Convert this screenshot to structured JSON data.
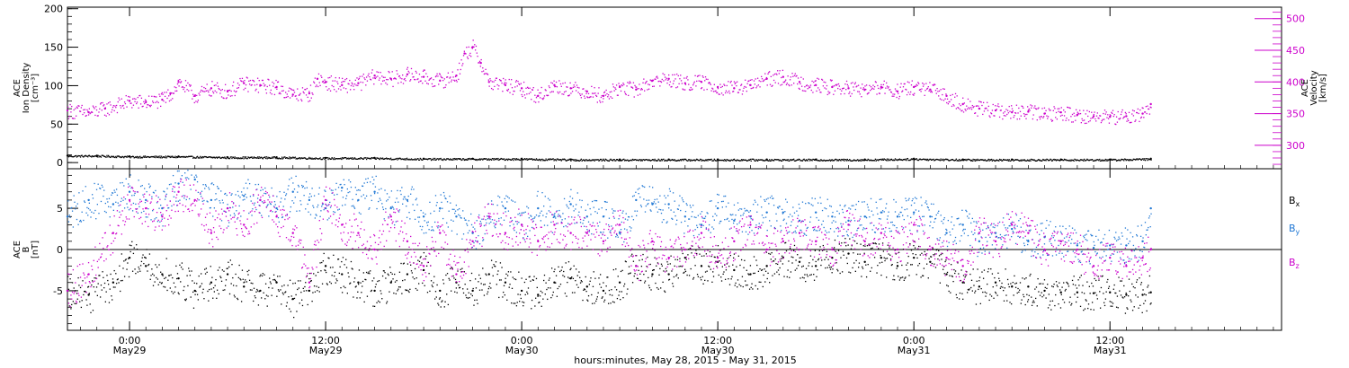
{
  "colors": {
    "black": "#000000",
    "magenta": "#cc00cc",
    "blue": "#1f77d4"
  },
  "x_axis": {
    "label": "hours:minutes, May 28, 2015 - May 31, 2015",
    "ticks": [
      {
        "t": 0,
        "time": "0:00",
        "date": "May29"
      },
      {
        "t": 12,
        "time": "12:00",
        "date": "May29"
      },
      {
        "t": 24,
        "time": "0:00",
        "date": "May30"
      },
      {
        "t": 36,
        "time": "12:00",
        "date": "May30"
      },
      {
        "t": 48,
        "time": "0:00",
        "date": "May31"
      },
      {
        "t": 60,
        "time": "12:00",
        "date": "May31"
      }
    ]
  },
  "chart_data": [
    {
      "type": "scatter",
      "panel": "top",
      "x_units": "hours since May 29 00:00",
      "xlim": [
        -3.8,
        70.5
      ],
      "left_axis": {
        "label_lines": [
          "ACE",
          "Ion Density",
          "[cm⁻³]"
        ],
        "ylim": [
          -8,
          202
        ],
        "ticks": [
          0,
          50,
          100,
          150,
          200
        ]
      },
      "right_axis": {
        "label_lines": [
          "ACE",
          "Velocity",
          "[km/s]"
        ],
        "ylim": [
          263,
          518
        ],
        "ticks": [
          300,
          350,
          400,
          450,
          500
        ]
      },
      "series": [
        {
          "name": "Ion Density",
          "axis": "left",
          "color": "#000000",
          "x": [
            -3.8,
            -2,
            0,
            3,
            6,
            9,
            12,
            15,
            18,
            21,
            24,
            27,
            30,
            33,
            36,
            39,
            42,
            45,
            48,
            51,
            54,
            57,
            60,
            62.5
          ],
          "y": [
            9,
            9,
            8,
            8,
            7,
            7,
            6,
            6,
            5,
            5,
            5,
            4,
            4,
            4,
            4,
            4,
            4,
            4,
            5,
            4,
            4,
            4,
            4,
            5
          ]
        },
        {
          "name": "Velocity",
          "axis": "right",
          "color": "#cc00cc",
          "x": [
            -3.8,
            -2.5,
            -1.5,
            0,
            1,
            2,
            2.5,
            3,
            4,
            5,
            6,
            7,
            8,
            9,
            10,
            11,
            11.5,
            12,
            13,
            14,
            15,
            16,
            17,
            18,
            19,
            20,
            20.5,
            21,
            21.5,
            22,
            23,
            24,
            25,
            26,
            27,
            28,
            29,
            30,
            31,
            32,
            33,
            34,
            35,
            36,
            37,
            38,
            39,
            40,
            41,
            42,
            43,
            44,
            45,
            46,
            47,
            48,
            49,
            50,
            51,
            52,
            53,
            54,
            55,
            56,
            57,
            58,
            59,
            60,
            61,
            62,
            62.5
          ],
          "y": [
            355,
            352,
            358,
            370,
            368,
            372,
            382,
            400,
            378,
            390,
            385,
            398,
            395,
            392,
            380,
            382,
            405,
            400,
            395,
            398,
            410,
            405,
            412,
            408,
            402,
            410,
            445,
            455,
            430,
            400,
            395,
            390,
            378,
            395,
            390,
            385,
            378,
            392,
            388,
            402,
            405,
            398,
            400,
            392,
            390,
            395,
            405,
            408,
            400,
            395,
            392,
            390,
            388,
            392,
            385,
            392,
            388,
            378,
            365,
            358,
            355,
            352,
            353,
            350,
            352,
            348,
            346,
            345,
            346,
            350,
            365
          ]
        }
      ]
    },
    {
      "type": "scatter",
      "panel": "bottom",
      "x_units": "hours since May 29 00:00",
      "xlim": [
        -3.8,
        70.5
      ],
      "left_axis": {
        "label_lines": [
          "ACE",
          "B",
          "[nT]"
        ],
        "ylim": [
          -9.8,
          9.8
        ],
        "ticks": [
          -5,
          0,
          5
        ]
      },
      "zero_line": true,
      "series": [
        {
          "name": "Bx",
          "legend": [
            "B",
            "x"
          ],
          "color": "#000000",
          "x": [
            -3.8,
            -2.5,
            -1,
            0,
            1,
            2,
            3,
            4,
            5,
            6,
            7,
            8,
            9,
            10,
            11,
            12,
            13,
            14,
            15,
            16,
            17,
            18,
            19,
            20,
            21,
            22,
            23,
            24,
            25,
            26,
            27,
            28,
            29,
            30,
            31,
            32,
            33,
            34,
            35,
            36,
            37,
            38,
            39,
            40,
            41,
            42,
            43,
            44,
            45,
            46,
            47,
            48,
            49,
            50,
            51,
            52,
            53,
            54,
            55,
            56,
            57,
            58,
            59,
            60,
            61,
            62,
            62.5
          ],
          "y": [
            -5,
            -5.5,
            -4,
            -1,
            -2,
            -3,
            -3.5,
            -5,
            -4,
            -3,
            -4.5,
            -5,
            -4,
            -6,
            -5,
            -2,
            -3,
            -4,
            -5,
            -4,
            -3,
            -2.5,
            -5,
            -4,
            -5,
            -3,
            -4,
            -5,
            -5.5,
            -4,
            -3.5,
            -4.5,
            -5,
            -4,
            -2,
            -3,
            -3,
            -1,
            -2,
            -1.5,
            -2.5,
            -3,
            -2,
            -1,
            -1.5,
            -2,
            -1,
            -0.5,
            -1.5,
            -1,
            -2,
            -1,
            -1.5,
            -3,
            -4,
            -4.5,
            -4,
            -4.5,
            -4.5,
            -5,
            -5.2,
            -5.2,
            -5.3,
            -5.2,
            -5.5,
            -5.5,
            -5.2
          ]
        },
        {
          "name": "By",
          "legend": [
            "B",
            "y"
          ],
          "color": "#1f77d4",
          "x": [
            -3.8,
            -2.5,
            -1,
            0,
            1,
            2,
            3,
            4,
            5,
            6,
            7,
            8,
            9,
            10,
            11,
            12,
            13,
            14,
            15,
            16,
            17,
            18,
            19,
            20,
            21,
            22,
            23,
            24,
            25,
            26,
            27,
            28,
            29,
            30,
            31,
            32,
            33,
            34,
            35,
            36,
            37,
            38,
            39,
            40,
            41,
            42,
            43,
            44,
            45,
            46,
            47,
            48,
            49,
            50,
            51,
            52,
            53,
            54,
            55,
            56,
            57,
            58,
            59,
            60,
            61,
            62,
            62.5
          ],
          "y": [
            4,
            6,
            5.5,
            7,
            6,
            5,
            8,
            8.5,
            6,
            5,
            6.5,
            6,
            5,
            7,
            6,
            5,
            7.5,
            6,
            7,
            5,
            6,
            4,
            5,
            4,
            2,
            4,
            5,
            3,
            5,
            4,
            5.5,
            4,
            4,
            2,
            6,
            5.5,
            5.5,
            4,
            3,
            5,
            3.5,
            4,
            4.5,
            4.5,
            3.5,
            4.5,
            4,
            3.5,
            4,
            4.5,
            4,
            4.5,
            4,
            2,
            3,
            1,
            2,
            2.5,
            1,
            1.5,
            1,
            0.5,
            0.2,
            0.5,
            0.5,
            1,
            5
          ]
        },
        {
          "name": "Bz",
          "legend": [
            "B",
            "z"
          ],
          "color": "#cc00cc",
          "x": [
            -3.8,
            -2.5,
            -1,
            0,
            1,
            2,
            3,
            4,
            5,
            6,
            7,
            8,
            9,
            10,
            11,
            12,
            13,
            14,
            15,
            16,
            17,
            18,
            19,
            20,
            21,
            22,
            23,
            24,
            25,
            26,
            27,
            28,
            29,
            30,
            31,
            32,
            33,
            34,
            35,
            36,
            37,
            38,
            39,
            40,
            41,
            42,
            43,
            44,
            45,
            46,
            47,
            48,
            49,
            50,
            51,
            52,
            53,
            54,
            55,
            56,
            57,
            58,
            59,
            60,
            61,
            62,
            62.5
          ],
          "y": [
            -5,
            -3,
            2,
            6,
            5,
            4,
            7,
            6,
            2,
            5,
            3,
            6,
            4,
            2,
            -4,
            6,
            3,
            2,
            0,
            4,
            1,
            -2,
            2,
            -3,
            1,
            4,
            2,
            3,
            1,
            3,
            2,
            2,
            1,
            3,
            -2,
            1,
            -1,
            0,
            2,
            -1,
            1,
            3,
            0,
            1,
            2,
            1,
            0,
            3,
            1,
            2,
            0,
            3,
            0,
            -1,
            -2,
            2,
            1,
            3,
            2,
            0,
            1,
            0,
            -2,
            -1,
            -2,
            -1,
            0
          ]
        }
      ]
    }
  ]
}
